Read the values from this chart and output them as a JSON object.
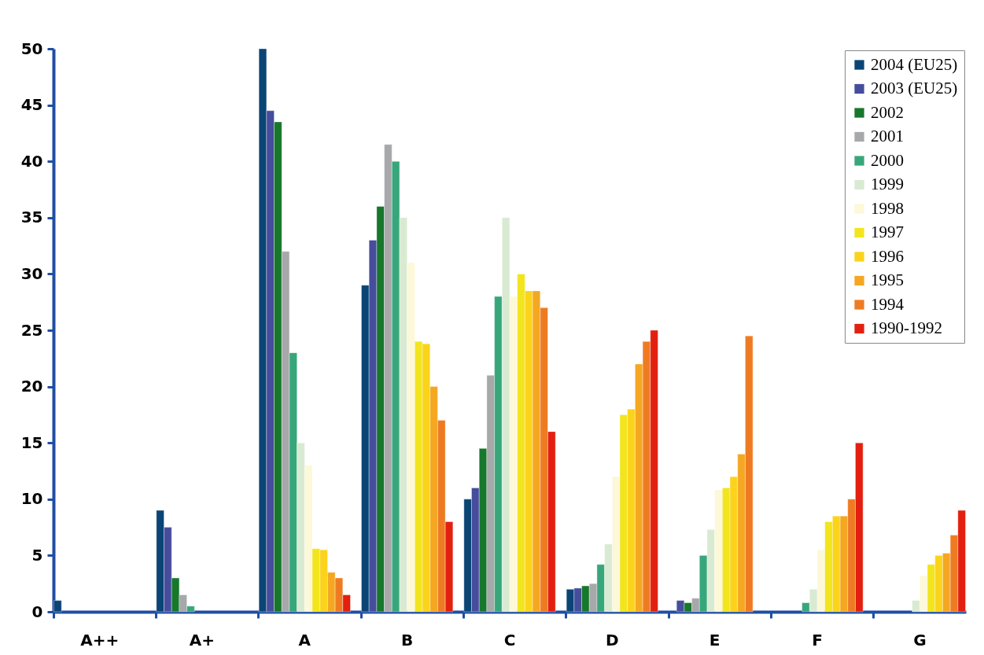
{
  "chart_data": {
    "type": "bar",
    "categories": [
      "A++",
      "A+",
      "A",
      "B",
      "C",
      "D",
      "E",
      "F",
      "G"
    ],
    "series": [
      {
        "name": "2004 (EU25)",
        "color": "#0a4575",
        "values": [
          1,
          9,
          50,
          29,
          10,
          2,
          null,
          null,
          null
        ]
      },
      {
        "name": "2003 (EU25)",
        "color": "#454d9c",
        "values": [
          null,
          7.5,
          44.5,
          33,
          11,
          2.1,
          1,
          null,
          null
        ]
      },
      {
        "name": "2002",
        "color": "#17772b",
        "values": [
          null,
          3,
          43.5,
          36,
          14.5,
          2.3,
          0.8,
          null,
          null
        ]
      },
      {
        "name": "2001",
        "color": "#a6a8aa",
        "values": [
          null,
          1.5,
          32,
          41.5,
          21,
          2.5,
          1.2,
          null,
          null
        ]
      },
      {
        "name": "2000",
        "color": "#37a77b",
        "values": [
          null,
          0.5,
          23,
          40,
          28,
          4.2,
          5,
          0.8,
          null
        ]
      },
      {
        "name": "1999",
        "color": "#d9ead2",
        "values": [
          null,
          null,
          15,
          35,
          35,
          6,
          7.3,
          2,
          1
        ]
      },
      {
        "name": "1998",
        "color": "#fcf8d8",
        "values": [
          null,
          null,
          13,
          31,
          28,
          12,
          10.8,
          5.5,
          3.2
        ]
      },
      {
        "name": "1997",
        "color": "#f2e51d",
        "values": [
          null,
          null,
          5.6,
          24,
          30,
          17.5,
          11,
          8,
          4.2
        ]
      },
      {
        "name": "1996",
        "color": "#fbd31a",
        "values": [
          null,
          null,
          5.5,
          23.8,
          28.5,
          18,
          12,
          8.5,
          5
        ]
      },
      {
        "name": "1995",
        "color": "#f5a722",
        "values": [
          null,
          null,
          3.5,
          20,
          28.5,
          22,
          14,
          8.5,
          5.2
        ]
      },
      {
        "name": "1994",
        "color": "#ee7b22",
        "values": [
          null,
          null,
          3,
          17,
          27,
          24,
          24.5,
          10,
          6.8
        ]
      },
      {
        "name": "1990-1992",
        "color": "#e3200f",
        "values": [
          null,
          null,
          1.5,
          8,
          16,
          25,
          null,
          15,
          9
        ]
      }
    ],
    "ylim": [
      0,
      50
    ],
    "yticks": [
      0,
      5,
      10,
      15,
      20,
      25,
      30,
      35,
      40,
      45,
      50
    ],
    "legend": "top right"
  }
}
